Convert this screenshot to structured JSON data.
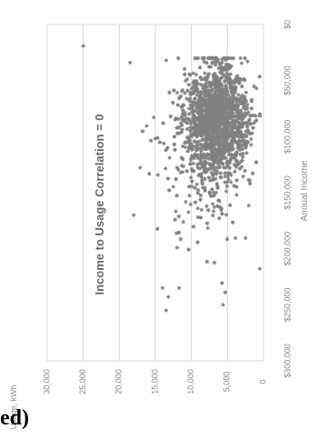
{
  "caption_fragment": "ed)",
  "chart_data": {
    "type": "scatter",
    "title": "Income to Usage Correlation = 0",
    "xlabel": "Annual Income",
    "ylabel": "Usage, kWh",
    "x_ticks": [
      "$0",
      "$50,000",
      "$100,000",
      "$150,000",
      "$200,000",
      "$250,000",
      "$300,000"
    ],
    "y_ticks": [
      "0",
      "5,000",
      "10,000",
      "15,000",
      "20,000",
      "25,000",
      "30,000"
    ],
    "xlim": [
      0,
      300000
    ],
    "ylim": [
      0,
      30000
    ],
    "grid": true,
    "orientation": "rotated 90 degrees counter-clockwise",
    "marker": "asterisk",
    "color": "#808080",
    "density_summary": "dense cluster from about $40,000 to $140,000 income and 2,000 to 10,000 kWh, with a sparse tail to about $250,000 and up to about 25,000 kWh",
    "outliers": [
      {
        "x": 19000,
        "y": 25000
      },
      {
        "x": 34000,
        "y": 18500
      },
      {
        "x": 170000,
        "y": 18000
      },
      {
        "x": 235000,
        "y": 14000
      },
      {
        "x": 243000,
        "y": 13200
      },
      {
        "x": 235000,
        "y": 11700
      },
      {
        "x": 250000,
        "y": 5600
      },
      {
        "x": 255000,
        "y": 13500
      }
    ]
  }
}
